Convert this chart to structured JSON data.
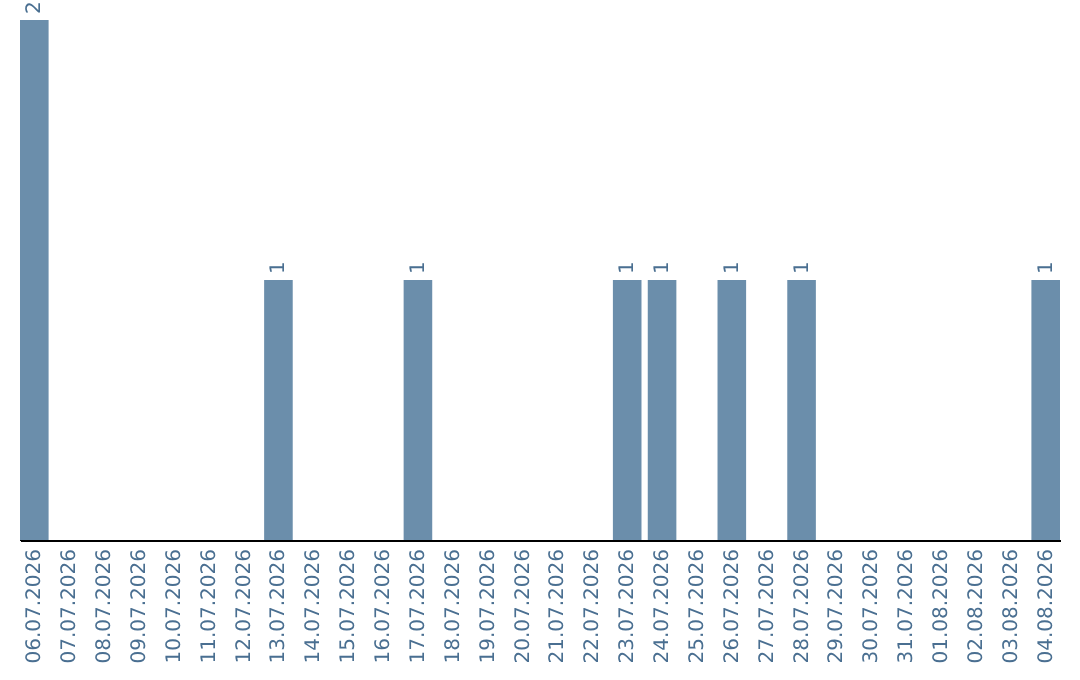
{
  "chart_data": {
    "type": "bar",
    "categories": [
      "06.07.2026",
      "07.07.2026",
      "08.07.2026",
      "09.07.2026",
      "10.07.2026",
      "11.07.2026",
      "12.07.2026",
      "13.07.2026",
      "14.07.2026",
      "15.07.2026",
      "16.07.2026",
      "17.07.2026",
      "18.07.2026",
      "19.07.2026",
      "20.07.2026",
      "21.07.2026",
      "22.07.2026",
      "23.07.2026",
      "24.07.2026",
      "25.07.2026",
      "26.07.2026",
      "27.07.2026",
      "28.07.2026",
      "29.07.2026",
      "30.07.2026",
      "31.07.2026",
      "01.08.2026",
      "02.08.2026",
      "03.08.2026",
      "04.08.2026"
    ],
    "values": [
      2,
      0,
      0,
      0,
      0,
      0,
      0,
      1,
      0,
      0,
      0,
      1,
      0,
      0,
      0,
      0,
      0,
      1,
      1,
      0,
      1,
      0,
      1,
      0,
      0,
      0,
      0,
      0,
      0,
      1
    ],
    "value_labels": [
      "2",
      null,
      null,
      null,
      null,
      null,
      null,
      "1",
      null,
      null,
      null,
      "1",
      null,
      null,
      null,
      null,
      null,
      "1",
      "1",
      null,
      "1",
      null,
      "1",
      null,
      null,
      null,
      null,
      null,
      null,
      "1"
    ],
    "color": "#6b8eab",
    "ylim": [
      0,
      2
    ],
    "tick_labels": "x",
    "grid": false
  }
}
